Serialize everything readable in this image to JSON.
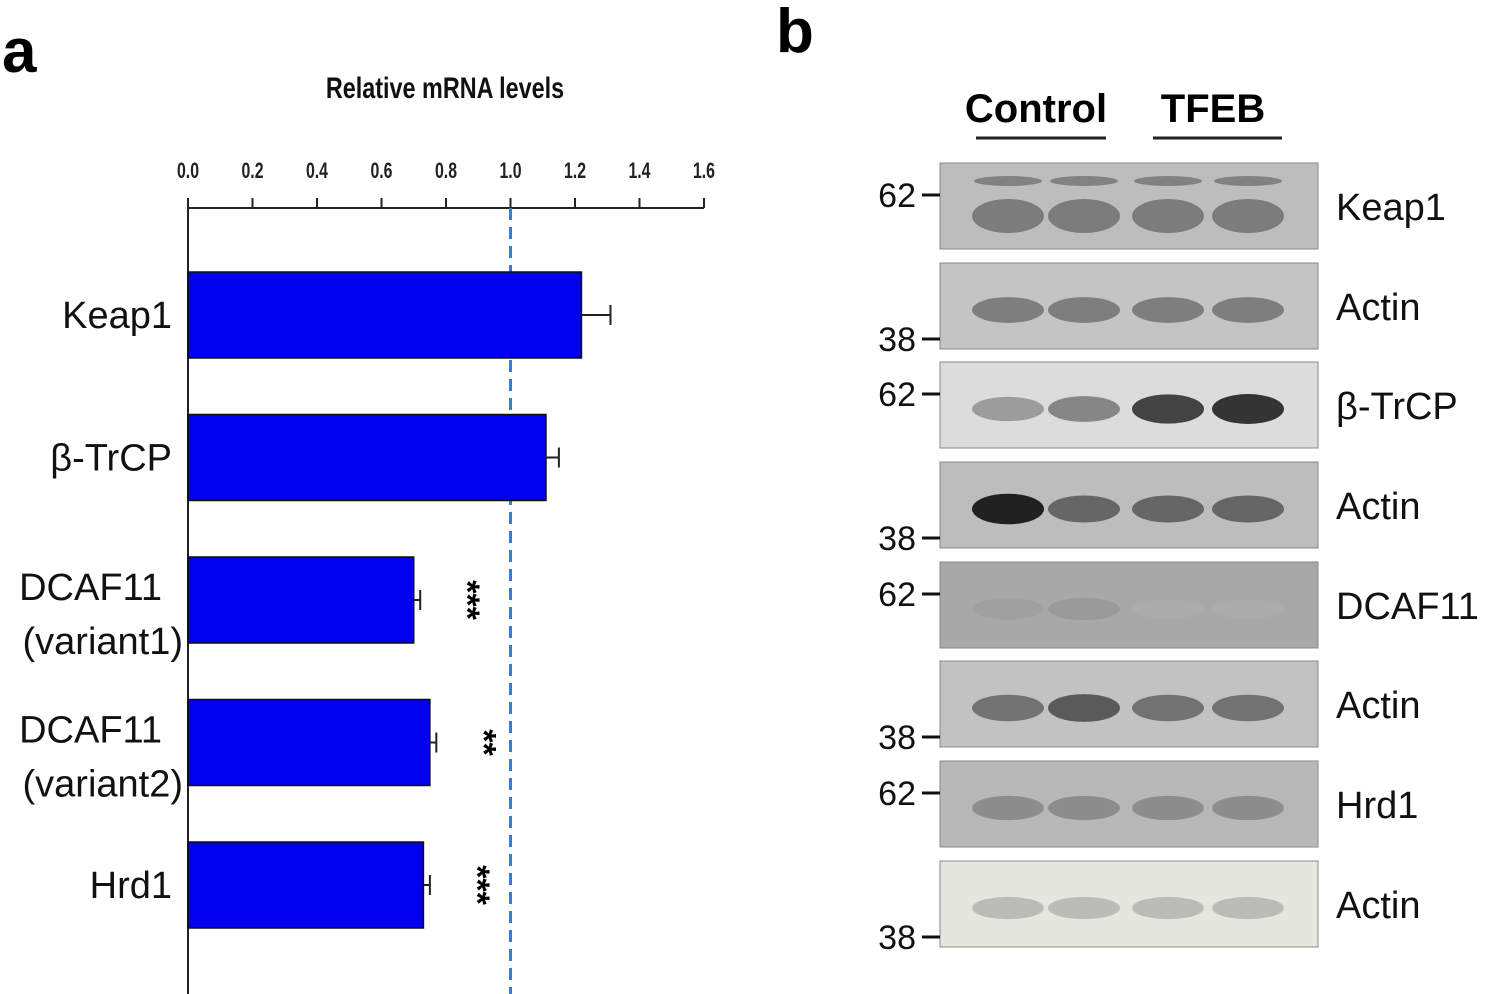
{
  "panel_a_label": "a",
  "panel_b_label": "b",
  "chart_data": {
    "type": "bar",
    "orientation": "horizontal",
    "title": "Relative mRNA levels",
    "xlabel": "",
    "ylabel": "",
    "xlim": [
      0,
      1.6
    ],
    "ticks": [
      "0.0",
      "0.2",
      "0.4",
      "0.6",
      "0.8",
      "1.0",
      "1.2",
      "1.4",
      "1.6"
    ],
    "reference_line": 1.0,
    "bar_color": "#0000ee",
    "reference_line_color": "#3a7bd5",
    "categories": [
      [
        "Keap1"
      ],
      [
        "β-TrCP"
      ],
      [
        "DCAF11",
        "(variant1)"
      ],
      [
        "DCAF11",
        "(variant2)"
      ],
      [
        "Hrd1"
      ]
    ],
    "values": [
      1.22,
      1.11,
      0.7,
      0.75,
      0.73
    ],
    "errors": [
      0.09,
      0.04,
      0.02,
      0.02,
      0.02
    ],
    "significance": [
      "",
      "",
      "***",
      "**",
      "***"
    ]
  },
  "western": {
    "groups": [
      "Control",
      "TFEB"
    ],
    "blots": [
      {
        "label": "Keap1",
        "marker": "62",
        "bg": "#bdbdbd",
        "band": [
          0.55,
          0.55,
          0.55,
          0.55
        ],
        "double": true
      },
      {
        "label": "Actin",
        "marker": "38",
        "bg": "#c4c4c4",
        "band": [
          0.55,
          0.55,
          0.55,
          0.55
        ],
        "double": false
      },
      {
        "label": "β-TrCP",
        "marker": "62",
        "bg": "#dcdcdc",
        "band": [
          0.45,
          0.55,
          0.8,
          0.85
        ],
        "double": false
      },
      {
        "label": "Actin",
        "marker": "38",
        "bg": "#bdbdbd",
        "band": [
          0.9,
          0.65,
          0.65,
          0.65
        ],
        "double": false
      },
      {
        "label": "DCAF11",
        "marker": "62",
        "bg": "#a8a8a8",
        "band": [
          0.25,
          0.3,
          0.1,
          0.1
        ],
        "double": false
      },
      {
        "label": "Actin",
        "marker": "38",
        "bg": "#c2c2c2",
        "band": [
          0.6,
          0.7,
          0.6,
          0.6
        ],
        "double": false
      },
      {
        "label": "Hrd1",
        "marker": "62",
        "bg": "#b8b8b8",
        "band": [
          0.45,
          0.45,
          0.45,
          0.45
        ],
        "double": false
      },
      {
        "label": "Actin",
        "marker": "38",
        "bg": "#e6e6e0",
        "band": [
          0.3,
          0.3,
          0.3,
          0.3
        ],
        "double": false
      }
    ]
  }
}
